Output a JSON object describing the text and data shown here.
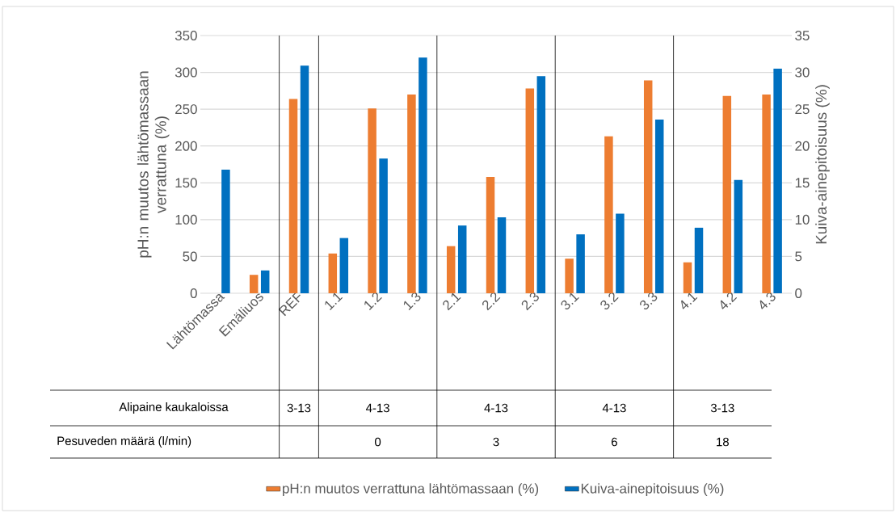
{
  "chart_data": {
    "type": "bar",
    "categories": [
      "Lähtömassa",
      "Emäliuos",
      "REF",
      "1.1",
      "1.2",
      "1.3",
      "2.1",
      "2.2",
      "2.3",
      "3.1",
      "3.2",
      "3.3",
      "4.1",
      "4.2",
      "4.3"
    ],
    "series": [
      {
        "name": "pH:n muutos verrattuna lähtömassaan (%)",
        "color": "#ed7d31",
        "values": [
          null,
          25,
          264,
          54,
          251,
          270,
          64,
          158,
          278,
          47,
          213,
          289,
          42,
          268,
          270
        ]
      },
      {
        "name": "Kuiva-ainepitoisuus (%)",
        "color": "#0070c0",
        "axis": "y2",
        "values": [
          16.8,
          3.1,
          30.9,
          7.5,
          18.3,
          32.0,
          9.2,
          10.3,
          29.5,
          8.0,
          10.8,
          23.6,
          8.9,
          15.4,
          30.5
        ]
      }
    ],
    "ylabel": "pH:n muutos lähtömassaan verrattuna (%)",
    "y2label": "Kuiva-ainepitoisuus (%)",
    "ylim": [
      0,
      350
    ],
    "yticks": [
      0,
      50,
      100,
      150,
      200,
      250,
      300,
      350
    ],
    "y2lim": [
      0,
      35
    ],
    "y2ticks": [
      0,
      5,
      10,
      15,
      20,
      25,
      30,
      35
    ],
    "grid": "y",
    "legend": "bottom",
    "annotations": [
      "Alipaine kaukaloissa",
      "3-13",
      "4-13",
      "4-13",
      "4-13",
      "3-13",
      "Pesuveden määrä (l/min)",
      "0",
      "3",
      "6",
      "18"
    ]
  }
}
